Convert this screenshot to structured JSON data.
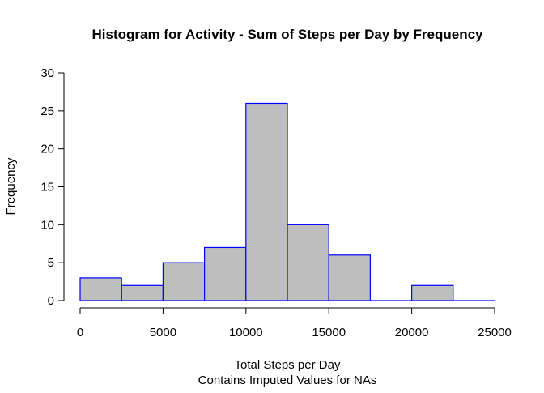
{
  "chart_data": {
    "type": "bar",
    "title": "Histogram for Activity - Sum of Steps per Day by Frequency",
    "xlabel": "Total Steps per Day",
    "xlabel_sub": "Contains Imputed Values for NAs",
    "ylabel": "Frequency",
    "bins": [
      {
        "x0": 0,
        "x1": 2500,
        "count": 3
      },
      {
        "x0": 2500,
        "x1": 5000,
        "count": 2
      },
      {
        "x0": 5000,
        "x1": 7500,
        "count": 5
      },
      {
        "x0": 7500,
        "x1": 10000,
        "count": 7
      },
      {
        "x0": 10000,
        "x1": 12500,
        "count": 26
      },
      {
        "x0": 12500,
        "x1": 15000,
        "count": 10
      },
      {
        "x0": 15000,
        "x1": 17500,
        "count": 6
      },
      {
        "x0": 17500,
        "x1": 20000,
        "count": 0
      },
      {
        "x0": 20000,
        "x1": 22500,
        "count": 2
      },
      {
        "x0": 22500,
        "x1": 25000,
        "count": 0
      }
    ],
    "xlim": [
      0,
      25000
    ],
    "ylim": [
      0,
      30
    ],
    "xticks": [
      0,
      5000,
      10000,
      15000,
      20000,
      25000
    ],
    "yticks": [
      0,
      5,
      10,
      15,
      20,
      25,
      30
    ],
    "bar_fill": "#bebebe",
    "bar_border": "#0000ff",
    "grid": false,
    "legend": "none"
  }
}
